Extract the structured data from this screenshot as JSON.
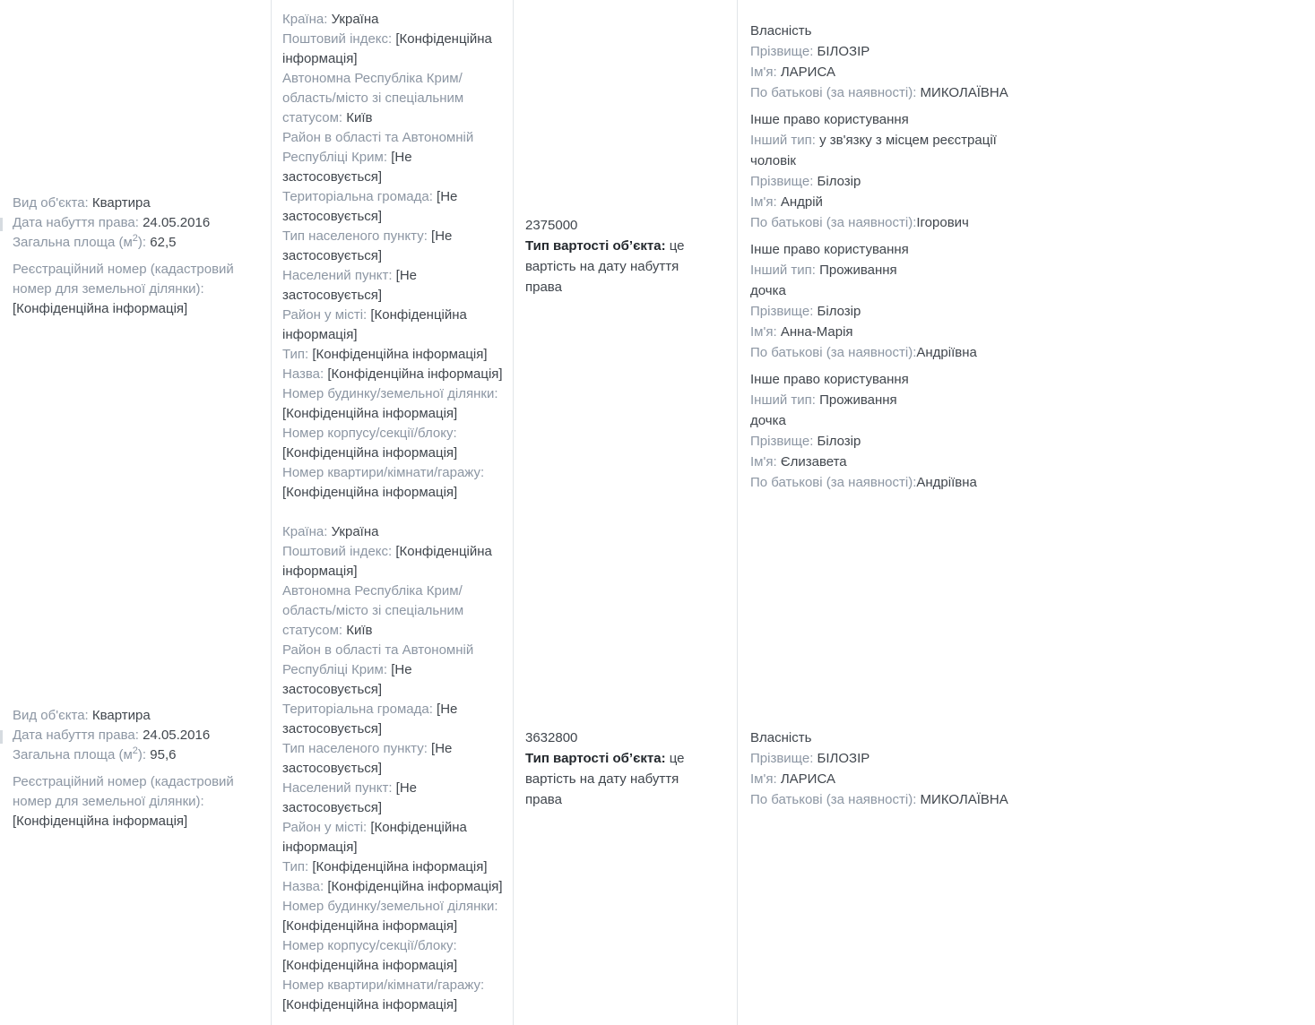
{
  "colors": {
    "label": "#8C96A3",
    "value": "#40464D",
    "value_bold": "#23282D",
    "divider": "#E1E5E9",
    "background": "#FFFFFF"
  },
  "rows": [
    {
      "object_info": {
        "fields": [
          {
            "label": "Вид об'єкта: ",
            "value": "Квартира"
          },
          {
            "label": "Дата набуття права: ",
            "value": "24.05.2016"
          },
          {
            "label": "Загальна площа (м",
            "sup": "2",
            "label2": "): ",
            "value": "62,5"
          }
        ],
        "registration_label": "Реєстраційний номер (кадастровий номер для земельної ділянки): ",
        "registration_value": "[Конфіденційна інформація]"
      },
      "location": {
        "fields": [
          {
            "label": "Країна: ",
            "value": "Україна"
          },
          {
            "label": "Поштовий індекс: ",
            "value": "[Конфіденційна інформація]"
          },
          {
            "label": "Автономна Республіка Крим/область/місто зі спеціальним статусом: ",
            "value": "Київ"
          },
          {
            "label": "Район в області та Автономній Республіці Крим: ",
            "value": "[Не застосовується]"
          },
          {
            "label": "Територіальна громада: ",
            "value": "[Не застосовується]"
          },
          {
            "label": "Тип населеного пункту: ",
            "value": "[Не застосовується]"
          },
          {
            "label": "Населений пункт: ",
            "value": "[Не застосовується]"
          },
          {
            "label": "Район у місті: ",
            "value": "[Конфіденційна інформація]"
          },
          {
            "label": "Тип: ",
            "value": "[Конфіденційна інформація]"
          },
          {
            "label": "Назва: ",
            "value": "[Конфіденційна інформація]"
          },
          {
            "label": "Номер будинку/земельної ділянки: ",
            "value": "[Конфіденційна інформація]"
          },
          {
            "label": "Номер корпусу/секції/блоку: ",
            "value": "[Конфіденційна інформація]"
          },
          {
            "label": "Номер квартири/кімнати/гаражу: ",
            "value": "[Конфіденційна інформація]"
          }
        ]
      },
      "valuation": {
        "amount": "2375000",
        "type_label": "Тип вартості об’єкта:",
        "type_text": "це вартість на дату набуття права"
      },
      "rights": [
        {
          "type": "Власність",
          "fields": [
            {
              "label": "Прізвище: ",
              "value": "БІЛОЗІР"
            },
            {
              "label": "Ім'я: ",
              "value": "ЛАРИСА"
            },
            {
              "label": "По батькові (за наявності): ",
              "value": "МИКОЛАЇВНА"
            }
          ]
        },
        {
          "type": "Інше право користування",
          "fields": [
            {
              "label": "Інший тип: ",
              "value": "у зв'язку з місцем реєстрації",
              "extra_line": "чоловік"
            },
            {
              "label": "Прізвище: ",
              "value": "Білозір"
            },
            {
              "label": "Ім'я: ",
              "value": "Андрій"
            },
            {
              "label": "По батькові (за наявності):",
              "value": "Ігорович"
            }
          ]
        },
        {
          "type": "Інше право користування",
          "fields": [
            {
              "label": "Інший тип: ",
              "value": "Проживання",
              "extra_line": "дочка"
            },
            {
              "label": "Прізвище: ",
              "value": "Білозір"
            },
            {
              "label": "Ім'я: ",
              "value": "Анна-Марія"
            },
            {
              "label": "По батькові (за наявності):",
              "value": "Андріївна"
            }
          ]
        },
        {
          "type": "Інше право користування",
          "fields": [
            {
              "label": "Інший тип: ",
              "value": "Проживання",
              "extra_line": "дочка"
            },
            {
              "label": "Прізвище: ",
              "value": "Білозір"
            },
            {
              "label": "Ім'я: ",
              "value": "Єлизавета"
            },
            {
              "label": "По батькові (за наявності):",
              "value": "Андріївна"
            }
          ]
        }
      ]
    },
    {
      "object_info": {
        "fields": [
          {
            "label": "Вид об'єкта: ",
            "value": "Квартира"
          },
          {
            "label": "Дата набуття права: ",
            "value": "24.05.2016"
          },
          {
            "label": "Загальна площа (м",
            "sup": "2",
            "label2": "): ",
            "value": "95,6"
          }
        ],
        "registration_label": "Реєстраційний номер (кадастровий номер для земельної ділянки): ",
        "registration_value": "[Конфіденційна інформація]"
      },
      "location": {
        "fields": [
          {
            "label": "Країна: ",
            "value": "Україна"
          },
          {
            "label": "Поштовий індекс: ",
            "value": "[Конфіденційна інформація]"
          },
          {
            "label": "Автономна Республіка Крим/область/місто зі спеціальним статусом: ",
            "value": "Київ"
          },
          {
            "label": "Район в області та Автономній Республіці Крим: ",
            "value": "[Не застосовується]"
          },
          {
            "label": "Територіальна громада: ",
            "value": "[Не застосовується]"
          },
          {
            "label": "Тип населеного пункту: ",
            "value": "[Не застосовується]"
          },
          {
            "label": "Населений пункт: ",
            "value": "[Не застосовується]"
          },
          {
            "label": "Район у місті: ",
            "value": "[Конфіденційна інформація]"
          },
          {
            "label": "Тип: ",
            "value": "[Конфіденційна інформація]"
          },
          {
            "label": "Назва: ",
            "value": "[Конфіденційна інформація]"
          },
          {
            "label": "Номер будинку/земельної ділянки: ",
            "value": "[Конфіденційна інформація]"
          },
          {
            "label": "Номер корпусу/секції/блоку: ",
            "value": "[Конфіденційна інформація]"
          },
          {
            "label": "Номер квартири/кімнати/гаражу: ",
            "value": "[Конфіденційна інформація]"
          }
        ]
      },
      "valuation": {
        "amount": "3632800",
        "type_label": "Тип вартості об’єкта:",
        "type_text": "це вартість на дату набуття права"
      },
      "rights": [
        {
          "type": "Власність",
          "fields": [
            {
              "label": "Прізвище: ",
              "value": "БІЛОЗІР"
            },
            {
              "label": "Ім'я: ",
              "value": "ЛАРИСА"
            },
            {
              "label": "По батькові (за наявності): ",
              "value": "МИКОЛАЇВНА"
            }
          ]
        }
      ]
    }
  ]
}
